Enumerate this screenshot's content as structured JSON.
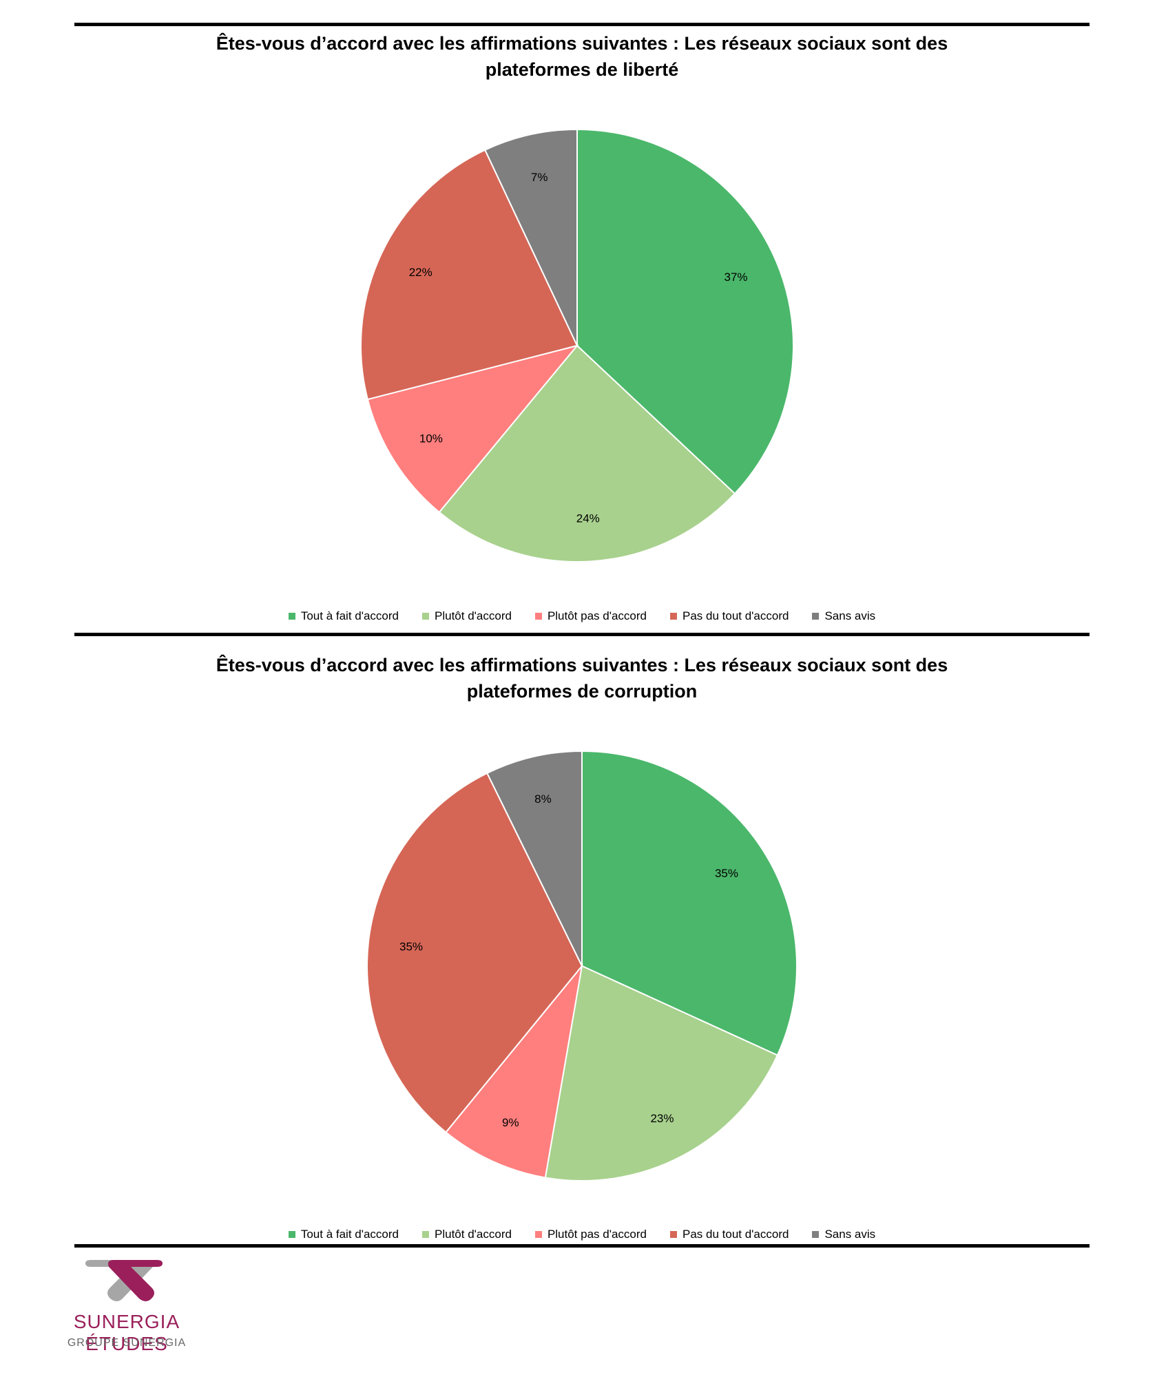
{
  "chart_data": [
    {
      "type": "pie",
      "title_lines": [
        "Êtes-vous d’accord avec les affirmations suivantes : Les réseaux sociaux sont des",
        "plateformes de liberté"
      ],
      "categories": [
        "Tout à fait d'accord",
        "Plutôt d'accord",
        "Plutôt pas d'accord",
        "Pas du tout d'accord",
        "Sans avis"
      ],
      "values": [
        37,
        24,
        10,
        22,
        7
      ],
      "value_labels": [
        "37%",
        "24%",
        "10%",
        "22%",
        "7%"
      ],
      "colors": [
        "#4bb76b",
        "#a8d18d",
        "#ff7f7e",
        "#d56656",
        "#7f7f7f"
      ],
      "legend": "bottom"
    },
    {
      "type": "pie",
      "title_lines": [
        "Êtes-vous d’accord avec les affirmations suivantes : Les réseaux sociaux sont des",
        "plateformes de corruption"
      ],
      "categories": [
        "Tout à fait d'accord",
        "Plutôt d'accord",
        "Plutôt pas d'accord",
        "Pas du tout d'accord",
        "Sans avis"
      ],
      "values": [
        35,
        23,
        9,
        35,
        8
      ],
      "value_labels": [
        "35%",
        "23%",
        "9%",
        "35%",
        "8%"
      ],
      "colors": [
        "#4bb76b",
        "#a8d18d",
        "#ff7f7e",
        "#d56656",
        "#7f7f7f"
      ],
      "legend": "bottom"
    }
  ],
  "footer": {
    "brand": "SUNERGIA ÉTUDES",
    "subtitle": "GROUPE SUNERGIA",
    "brand_color": "#9a1f5a",
    "logo_colors": [
      "#9a1f5a",
      "#a6a6a6"
    ]
  }
}
